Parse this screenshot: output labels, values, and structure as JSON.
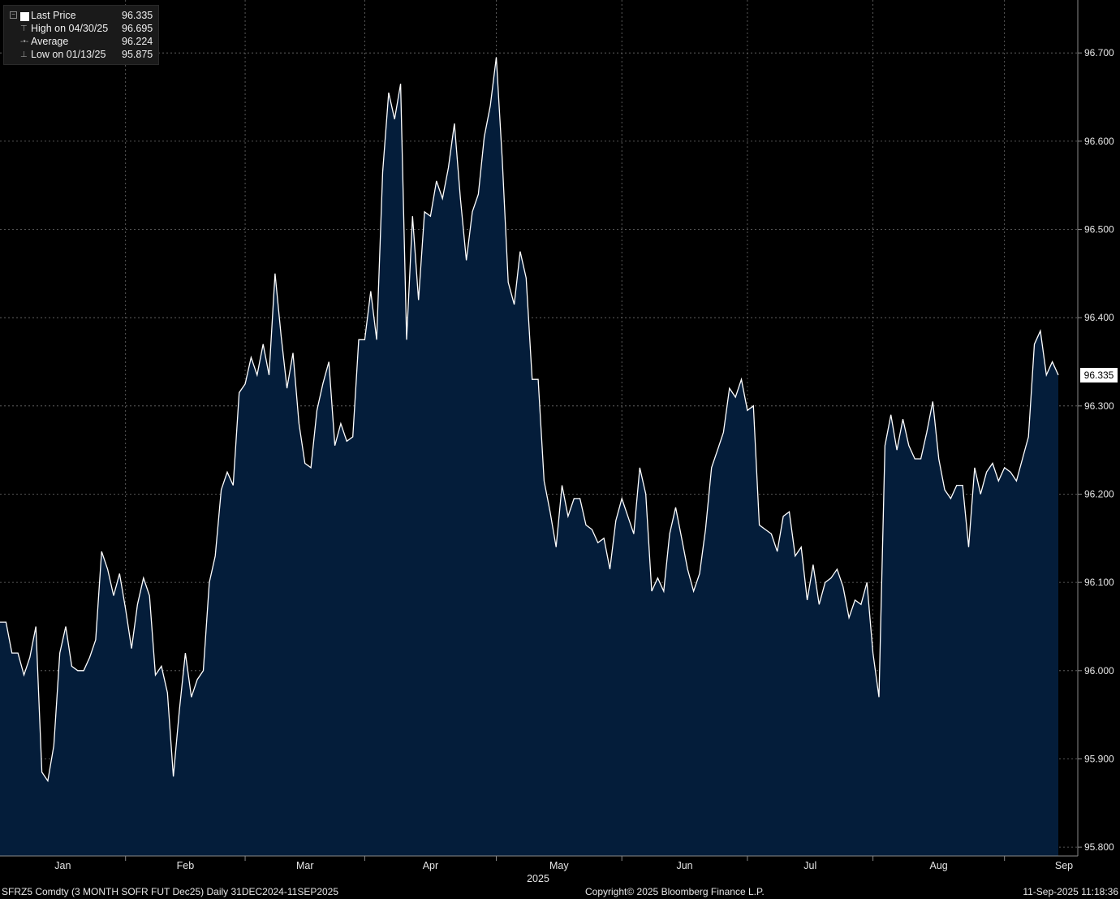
{
  "legend": {
    "last_label": "Last Price",
    "last_value": "96.335",
    "high_label": "High on 04/30/25",
    "high_value": "96.695",
    "avg_label": "Average",
    "avg_value": "96.224",
    "low_label": "Low on 01/13/25",
    "low_value": "95.875"
  },
  "last_price_tag": "96.335",
  "footer": {
    "left": "SFRZ5 Comdty (3 MONTH SOFR FUT  Dec25)  Daily 31DEC2024-11SEP2025",
    "center": "Copyright© 2025 Bloomberg Finance L.P.",
    "right": "11-Sep-2025 11:18:36"
  },
  "colors": {
    "background": "#000000",
    "fill": "#041d3a",
    "line": "#ffffff",
    "grid": "#6e6e6e"
  },
  "chart_data": {
    "type": "area",
    "title": "",
    "xlabel": "2025",
    "ylabel": "",
    "ylim": [
      95.79,
      96.76
    ],
    "grid": true,
    "legend_position": "top-left",
    "y_ticks": [
      "96.700",
      "96.600",
      "96.500",
      "96.400",
      "96.300",
      "96.200",
      "96.100",
      "96.000",
      "95.900",
      "95.800"
    ],
    "x_tick_labels": [
      "Jan",
      "Feb",
      "Mar",
      "Apr",
      "May",
      "Jun",
      "Jul",
      "Aug",
      "Sep"
    ],
    "x_year_label": "2025",
    "series": [
      {
        "values": [
          96.055,
          96.055,
          96.02,
          96.02,
          95.995,
          96.015,
          96.05,
          95.885,
          95.875,
          95.915,
          96.02,
          96.05,
          96.005,
          96.0,
          96.0,
          96.015,
          96.035,
          96.135,
          96.115,
          96.085,
          96.11,
          96.07,
          96.025,
          96.075,
          96.105,
          96.085,
          95.995,
          96.005,
          95.975,
          95.88,
          95.955,
          96.02,
          95.97,
          95.99,
          96.0,
          96.1,
          96.13,
          96.205,
          96.225,
          96.21,
          96.315,
          96.325,
          96.355,
          96.335,
          96.37,
          96.335,
          96.45,
          96.38,
          96.32,
          96.36,
          96.28,
          96.235,
          96.23,
          96.295,
          96.325,
          96.35,
          96.255,
          96.28,
          96.26,
          96.265,
          96.375,
          96.375,
          96.43,
          96.375,
          96.565,
          96.655,
          96.625,
          96.665,
          96.375,
          96.515,
          96.42,
          96.52,
          96.515,
          96.555,
          96.535,
          96.57,
          96.62,
          96.535,
          96.465,
          96.52,
          96.54,
          96.605,
          96.64,
          96.695,
          96.58,
          96.44,
          96.415,
          96.475,
          96.445,
          96.33,
          96.33,
          96.215,
          96.18,
          96.14,
          96.21,
          96.175,
          96.195,
          96.195,
          96.165,
          96.16,
          96.145,
          96.15,
          96.115,
          96.17,
          96.195,
          96.175,
          96.155,
          96.23,
          96.2,
          96.09,
          96.105,
          96.09,
          96.155,
          96.185,
          96.15,
          96.115,
          96.09,
          96.11,
          96.16,
          96.23,
          96.25,
          96.27,
          96.32,
          96.31,
          96.33,
          96.295,
          96.3,
          96.165,
          96.16,
          96.155,
          96.135,
          96.175,
          96.18,
          96.13,
          96.14,
          96.08,
          96.12,
          96.075,
          96.1,
          96.105,
          96.115,
          96.095,
          96.06,
          96.08,
          96.075,
          96.1,
          96.02,
          95.97,
          96.255,
          96.29,
          96.25,
          96.285,
          96.255,
          96.24,
          96.24,
          96.27,
          96.305,
          96.24,
          96.205,
          96.195,
          96.21,
          96.21,
          96.14,
          96.23,
          96.2,
          96.225,
          96.235,
          96.215,
          96.23,
          96.225,
          96.215,
          96.24,
          96.265,
          96.37,
          96.385,
          96.335,
          96.35,
          96.335
        ]
      }
    ]
  }
}
